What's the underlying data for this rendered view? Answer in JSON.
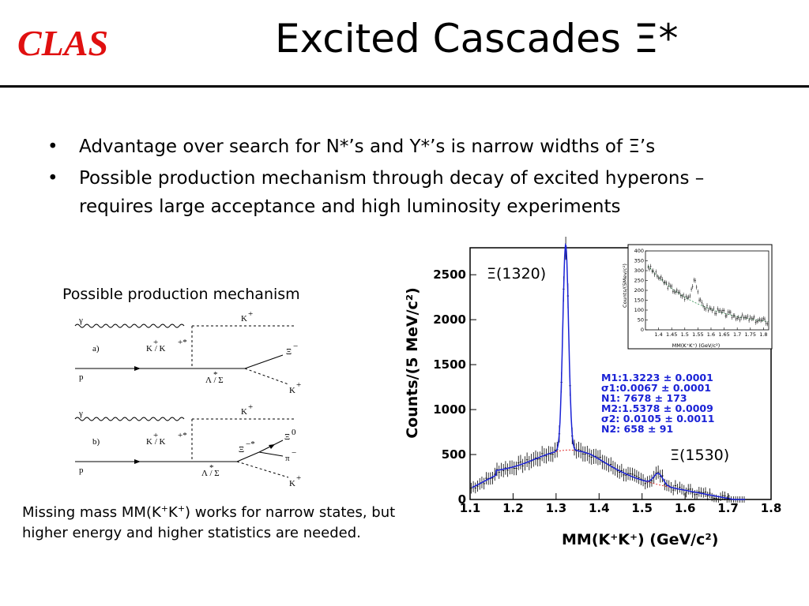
{
  "slide": {
    "logo": "CLAS",
    "title": "Excited Cascades  Ξ*",
    "bullets": [
      "Advantage over search for N*’s and Y*’s is narrow widths of Ξ’s",
      "Possible production mechanism through decay of excited hyperons – requires large acceptance and high luminosity experiments"
    ],
    "bullet_marker": "•",
    "mechanism_caption": "Possible production mechanism",
    "note": {
      "prefix": "Missing mass MM(K",
      "sup1": "+",
      "mid": "K",
      "sup2": "+",
      "suffix": ") works for narrow states, but higher energy and higher statistics are needed."
    }
  },
  "diagrams": {
    "a": {
      "tag": "a)",
      "gamma": "γ",
      "p": "p",
      "k_top": "K",
      "k_top_sup": "+",
      "exchange": "K  / K",
      "exchange_sup1": "+",
      "exchange_sup2": "+*",
      "hyperon": "Λ / Σ",
      "hyperon_sup": "*",
      "xi": "Ξ",
      "xi_sup": "−",
      "k_out": "K",
      "k_out_sup": "+"
    },
    "b": {
      "tag": "b)",
      "gamma": "γ",
      "p": "p",
      "k_top": "K",
      "k_top_sup": "+",
      "exchange": "K  / K",
      "exchange_sup1": "+",
      "exchange_sup2": "+*",
      "hyperon": "Λ / Σ",
      "hyperon_sup": "*",
      "xi_star": "Ξ",
      "xi_star_sup": "−*",
      "xi0": "Ξ",
      "xi0_sup": "0",
      "pi": "π",
      "pi_sup": "−",
      "k_out": "K",
      "k_out_sup": "+"
    }
  },
  "chart_data": [
    {
      "type": "scatter",
      "xlabel": "MM(K⁺K⁺)  (GeV/c²)",
      "ylabel": "Counts/(5 MeV/c²)",
      "xlim": [
        1.1,
        1.8
      ],
      "ylim": [
        0,
        2800
      ],
      "x_ticks": [
        "1.1",
        "1.2",
        "1.3",
        "1.4",
        "1.5",
        "1.6",
        "1.7",
        "1.8"
      ],
      "y_ticks": [
        "0",
        "500",
        "1000",
        "1500",
        "2000",
        "2500"
      ],
      "peak_labels": [
        "Ξ(1320)",
        "Ξ(1530)"
      ],
      "fit_results": [
        "M1:1.3223 ± 0.0001",
        "σ1:0.0067 ± 0.0001",
        "N1: 7678 ± 173",
        "M2:1.5378 ± 0.0009",
        "σ2: 0.0105 ± 0.0011",
        "N2: 658 ± 91"
      ],
      "peaks": [
        {
          "mean": 1.3223,
          "sigma": 0.0067,
          "count": 7678
        },
        {
          "mean": 1.5378,
          "sigma": 0.0105,
          "count": 658
        }
      ],
      "bin_width": 0.005,
      "colors": {
        "fit": "#1a22d6",
        "background": "#e03030",
        "points": "#000000"
      }
    },
    {
      "type": "scatter",
      "inset": true,
      "xlabel": "MM(K⁺K⁺)  (GeV/c²)",
      "ylabel": "Counts/(5Mev/c²)",
      "xlim": [
        1.35,
        1.82
      ],
      "ylim": [
        0,
        400
      ],
      "x_ticks": [
        "1.4",
        "1.45",
        "1.5",
        "1.55",
        "1.6",
        "1.65",
        "1.7",
        "1.75",
        "1.8"
      ],
      "y_ticks": [
        "0",
        "50",
        "100",
        "150",
        "200",
        "250",
        "300",
        "350",
        "400"
      ],
      "colors": {
        "background": "#2a8a4a"
      }
    }
  ]
}
